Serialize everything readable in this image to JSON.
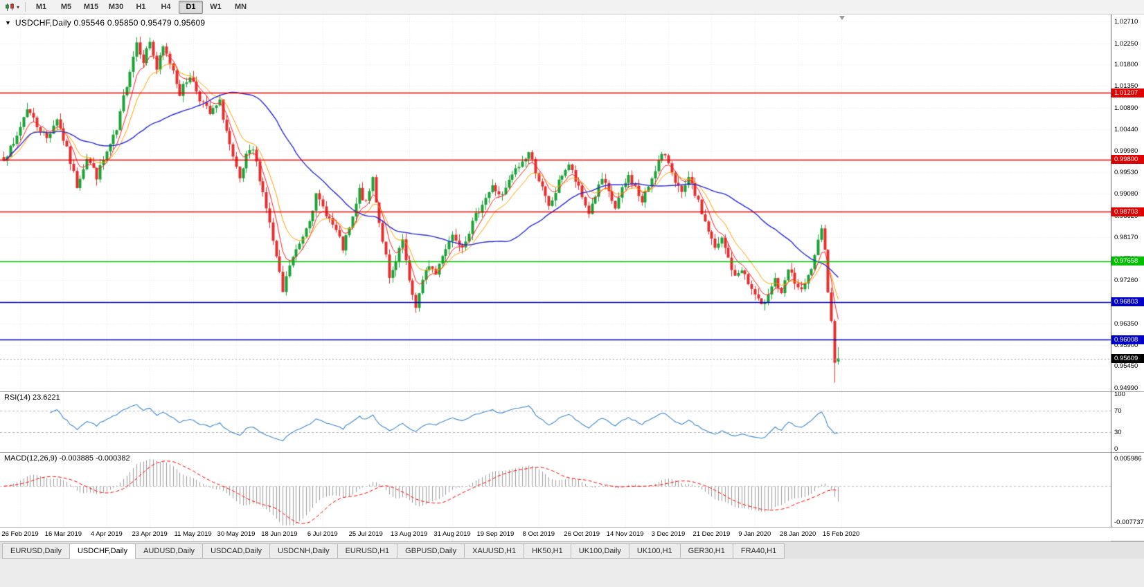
{
  "toolbar": {
    "chart_tool_icon": "candlestick-chart",
    "dropdown_icon": "caret-down",
    "timeframes": [
      "M1",
      "M5",
      "M15",
      "M30",
      "H1",
      "H4",
      "D1",
      "W1",
      "MN"
    ],
    "active_timeframe": "D1"
  },
  "chart": {
    "symbol": "USDCHF,Daily",
    "title_text": "USDCHF,Daily 0.95546 0.95850 0.95479 0.95609",
    "ohlc": {
      "open": "0.95546",
      "high": "0.95850",
      "low": "0.95479",
      "close": "0.95609"
    }
  },
  "price_axis": {
    "labels": [
      "1.02710",
      "1.02250",
      "1.01800",
      "1.01350",
      "1.00890",
      "1.00440",
      "0.99980",
      "0.99530",
      "0.99080",
      "0.98620",
      "0.98170",
      "0.97720",
      "0.97260",
      "0.96810",
      "0.96350",
      "0.95900",
      "0.95450",
      "0.94990"
    ]
  },
  "hlines": [
    {
      "price": 1.01207,
      "label": "1.01207",
      "color": "#e00000"
    },
    {
      "price": 0.998,
      "label": "0.99800",
      "color": "#e00000"
    },
    {
      "price": 0.98703,
      "label": "0.98703",
      "color": "#e00000"
    },
    {
      "price": 0.97658,
      "label": "0.97658",
      "color": "#00c000"
    },
    {
      "price": 0.96803,
      "label": "0.96803",
      "color": "#0000c8"
    },
    {
      "price": 0.96008,
      "label": "0.96008",
      "color": "#0000c8"
    }
  ],
  "current_price": {
    "value": 0.95609,
    "label": "0.95609",
    "badge_color": "#000000"
  },
  "rsi": {
    "name": "RSI(14)",
    "value": "23.6221",
    "axis_labels": [
      "100",
      "70",
      "30",
      "0"
    ],
    "dashed_levels": [
      70,
      30
    ],
    "line_color": "#3f86cf"
  },
  "macd": {
    "name": "MACD(12,26,9)",
    "values": "-0.003885 -0.000382",
    "axis_top": "0.005986",
    "axis_bottom": "-0.007737",
    "histogram_color": "#9b9b9b",
    "signal_color": "#ff0000"
  },
  "date_axis": [
    "26 Feb 2019",
    "16 Mar 2019",
    "4 Apr 2019",
    "23 Apr 2019",
    "11 May 2019",
    "30 May 2019",
    "18 Jun 2019",
    "6 Jul 2019",
    "25 Jul 2019",
    "13 Aug 2019",
    "31 Aug 2019",
    "19 Sep 2019",
    "8 Oct 2019",
    "26 Oct 2019",
    "14 Nov 2019",
    "3 Dec 2019",
    "21 Dec 2019",
    "9 Jan 2020",
    "28 Jan 2020",
    "15 Feb 2020"
  ],
  "tabs": {
    "items": [
      "EURUSD,Daily",
      "USDCHF,Daily",
      "AUDUSD,Daily",
      "USDCAD,Daily",
      "USDCNH,Daily",
      "EURUSD,H1",
      "GBPUSD,Daily",
      "XAUUSD,H1",
      "HK50,H1",
      "UK100,Daily",
      "UK100,H1",
      "GER30,H1",
      "FRA40,H1"
    ],
    "active": "USDCHF,Daily"
  },
  "chart_data": {
    "type": "candlestick",
    "symbol": "USDCHF",
    "timeframe": "Daily",
    "visible_start": "26 Feb 2019",
    "visible_end": "15 Feb 2020",
    "y_axis_range": [
      0.9499,
      1.0271
    ],
    "candle_count": 252,
    "dates": [
      "26 Feb 2019",
      "16 Mar 2019",
      "4 Apr 2019",
      "23 Apr 2019",
      "11 May 2019",
      "30 May 2019",
      "18 Jun 2019",
      "6 Jul 2019",
      "25 Jul 2019",
      "13 Aug 2019",
      "31 Aug 2019",
      "19 Sep 2019",
      "8 Oct 2019",
      "26 Oct 2019",
      "14 Nov 2019",
      "3 Dec 2019",
      "21 Dec 2019",
      "9 Jan 2020",
      "28 Jan 2020",
      "15 Feb 2020"
    ],
    "price_anchors": [
      [
        0,
        0.9985
      ],
      [
        3,
        1.001
      ],
      [
        7,
        1.009
      ],
      [
        10,
        1.0052
      ],
      [
        13,
        1.0025
      ],
      [
        16,
        1.0068
      ],
      [
        19,
        1.0
      ],
      [
        22,
        0.9925
      ],
      [
        25,
        0.9985
      ],
      [
        28,
        0.9945
      ],
      [
        31,
        0.9995
      ],
      [
        34,
        1.004
      ],
      [
        36,
        1.011
      ],
      [
        38,
        1.017
      ],
      [
        40,
        1.0228
      ],
      [
        42,
        1.019
      ],
      [
        44,
        1.023
      ],
      [
        46,
        1.017
      ],
      [
        48,
        1.0215
      ],
      [
        51,
        1.017
      ],
      [
        53,
        1.012
      ],
      [
        56,
        1.0158
      ],
      [
        59,
        1.011
      ],
      [
        62,
        1.0075
      ],
      [
        65,
        1.01
      ],
      [
        67,
        1.004
      ],
      [
        69,
        0.998
      ],
      [
        71,
        0.9935
      ],
      [
        73,
        0.9985
      ],
      [
        75,
        1.0
      ],
      [
        77,
        0.9942
      ],
      [
        79,
        0.988
      ],
      [
        81,
        0.9808
      ],
      [
        84,
        0.97
      ],
      [
        86,
        0.9758
      ],
      [
        89,
        0.9802
      ],
      [
        92,
        0.9858
      ],
      [
        94,
        0.9902
      ],
      [
        97,
        0.9868
      ],
      [
        100,
        0.9828
      ],
      [
        102,
        0.9792
      ],
      [
        105,
        0.9855
      ],
      [
        107,
        0.9915
      ],
      [
        109,
        0.9885
      ],
      [
        111,
        0.9942
      ],
      [
        113,
        0.9848
      ],
      [
        115,
        0.9775
      ],
      [
        116,
        0.9725
      ],
      [
        118,
        0.9762
      ],
      [
        120,
        0.981
      ],
      [
        122,
        0.9718
      ],
      [
        124,
        0.9672
      ],
      [
        126,
        0.9722
      ],
      [
        128,
        0.976
      ],
      [
        130,
        0.9738
      ],
      [
        132,
        0.9782
      ],
      [
        135,
        0.9822
      ],
      [
        138,
        0.98
      ],
      [
        141,
        0.9845
      ],
      [
        144,
        0.989
      ],
      [
        147,
        0.9922
      ],
      [
        150,
        0.9902
      ],
      [
        153,
        0.9948
      ],
      [
        156,
        0.9975
      ],
      [
        158,
        0.9995
      ],
      [
        160,
        0.9958
      ],
      [
        162,
        0.9918
      ],
      [
        164,
        0.9878
      ],
      [
        166,
        0.9912
      ],
      [
        168,
        0.995
      ],
      [
        170,
        0.997
      ],
      [
        172,
        0.9935
      ],
      [
        174,
        0.99
      ],
      [
        176,
        0.9868
      ],
      [
        178,
        0.9905
      ],
      [
        180,
        0.9938
      ],
      [
        182,
        0.9908
      ],
      [
        184,
        0.9878
      ],
      [
        186,
        0.9915
      ],
      [
        188,
        0.9945
      ],
      [
        190,
        0.9922
      ],
      [
        192,
        0.9888
      ],
      [
        194,
        0.9925
      ],
      [
        196,
        0.9962
      ],
      [
        198,
        0.9988
      ],
      [
        200,
        0.9975
      ],
      [
        202,
        0.9938
      ],
      [
        204,
        0.9905
      ],
      [
        206,
        0.9938
      ],
      [
        208,
        0.9908
      ],
      [
        210,
        0.9868
      ],
      [
        212,
        0.983
      ],
      [
        214,
        0.979
      ],
      [
        216,
        0.9812
      ],
      [
        218,
        0.9772
      ],
      [
        220,
        0.973
      ],
      [
        222,
        0.9752
      ],
      [
        224,
        0.9718
      ],
      [
        226,
        0.9695
      ],
      [
        228,
        0.9668
      ],
      [
        230,
        0.9702
      ],
      [
        232,
        0.973
      ],
      [
        234,
        0.9692
      ],
      [
        236,
        0.9748
      ],
      [
        238,
        0.9722
      ],
      [
        240,
        0.97
      ],
      [
        242,
        0.9732
      ],
      [
        244,
        0.9772
      ],
      [
        246,
        0.9835
      ],
      [
        247,
        0.979
      ],
      [
        248,
        0.97
      ],
      [
        249,
        0.964
      ],
      [
        250,
        0.9552
      ],
      [
        251,
        0.95609
      ]
    ],
    "last_candle": {
      "open": 0.95546,
      "high": 0.9585,
      "low": 0.95479,
      "close": 0.95609
    },
    "deep_wick": {
      "index": 250,
      "low": 0.951
    },
    "noise_seed": 7,
    "noise_amp": 0.0016,
    "wick_amp": 0.0014,
    "candle_up_color": "#1da237",
    "candle_down_color": "#e33030",
    "moving_averages": [
      {
        "type": "ema",
        "period": 6,
        "color": "#ff2020",
        "width": 1
      },
      {
        "type": "ema",
        "period": 12,
        "color": "#ffa000",
        "width": 1
      },
      {
        "type": "sma",
        "period": 40,
        "color": "#2a2ad4",
        "width": 1.4
      }
    ],
    "horizontal_levels": [
      1.01207,
      0.998,
      0.98703,
      0.97658,
      0.96803,
      0.96008
    ],
    "indicators": {
      "rsi": {
        "period": 14,
        "last_value": 23.6221,
        "scale": [
          0,
          100
        ],
        "levels": [
          30,
          70
        ]
      },
      "macd": {
        "fast": 12,
        "slow": 26,
        "signal": 9,
        "last_values": [
          -0.003885,
          -0.000382
        ],
        "scale": [
          -0.007737,
          0.005986
        ]
      }
    }
  }
}
